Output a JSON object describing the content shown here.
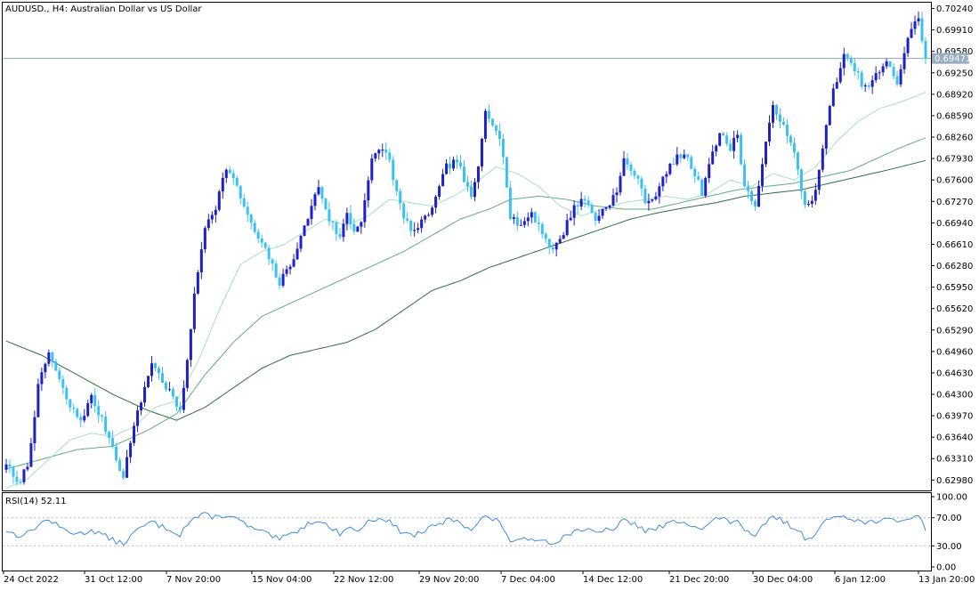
{
  "symbol_title": "AUDUSD., H4:  Australian Dollar vs US Dollar",
  "colors": {
    "bull": "#1f1fc8",
    "bear": "#3cc0f0",
    "ma_fast": "#a9dfc0",
    "ma_mid": "#5fae7c",
    "ma_slow": "#2f6e42",
    "rsi_line": "#3c8ee0",
    "price_line": "#8fa3b4",
    "axis": "#000000"
  },
  "chart_data": [
    {
      "type": "candlestick",
      "title": "AUDUSD., H4:  Australian Dollar vs US Dollar",
      "ylim": [
        0.6282,
        0.7033
      ],
      "y_ticks": [
        "0.70240",
        "0.69910",
        "0.69580",
        "0.69250",
        "0.68920",
        "0.68590",
        "0.68260",
        "0.67930",
        "0.67600",
        "0.67270",
        "0.66940",
        "0.66610",
        "0.66280",
        "0.65950",
        "0.65620",
        "0.65290",
        "0.64960",
        "0.64630",
        "0.64300",
        "0.63970",
        "0.63640",
        "0.63310",
        "0.62980"
      ],
      "current_price": "0.69471",
      "x_labels": [
        "24 Oct 2022",
        "31 Oct 12:00",
        "7 Nov 20:00",
        "15 Nov 04:00",
        "22 Nov 12:00",
        "29 Nov 20:00",
        "7 Dec 04:00",
        "14 Dec 12:00",
        "21 Dec 20:00",
        "30 Dec 04:00",
        "6 Jan 12:00",
        "13 Jan 20:00"
      ],
      "close_path": [
        [
          0,
          0.6325
        ],
        [
          3,
          0.629
        ],
        [
          6,
          0.632
        ],
        [
          9,
          0.644
        ],
        [
          12,
          0.6495
        ],
        [
          15,
          0.645
        ],
        [
          18,
          0.641
        ],
        [
          21,
          0.639
        ],
        [
          24,
          0.6425
        ],
        [
          27,
          0.639
        ],
        [
          30,
          0.635
        ],
        [
          33,
          0.63
        ],
        [
          35,
          0.636
        ],
        [
          38,
          0.642
        ],
        [
          41,
          0.648
        ],
        [
          44,
          0.645
        ],
        [
          47,
          0.6425
        ],
        [
          49,
          0.64
        ],
        [
          50,
          0.644
        ],
        [
          53,
          0.658
        ],
        [
          56,
          0.669
        ],
        [
          59,
          0.672
        ],
        [
          62,
          0.678
        ],
        [
          64,
          0.676
        ],
        [
          67,
          0.672
        ],
        [
          69,
          0.669
        ],
        [
          71,
          0.667
        ],
        [
          74,
          0.664
        ],
        [
          77,
          0.66
        ],
        [
          80,
          0.663
        ],
        [
          83,
          0.667
        ],
        [
          86,
          0.672
        ],
        [
          88,
          0.675
        ],
        [
          91,
          0.67
        ],
        [
          94,
          0.667
        ],
        [
          96,
          0.671
        ],
        [
          98,
          0.668
        ],
        [
          100,
          0.67
        ],
        [
          103,
          0.679
        ],
        [
          106,
          0.681
        ],
        [
          108,
          0.679
        ],
        [
          110,
          0.674
        ],
        [
          112,
          0.67
        ],
        [
          115,
          0.668
        ],
        [
          118,
          0.67
        ],
        [
          121,
          0.673
        ],
        [
          124,
          0.678
        ],
        [
          127,
          0.679
        ],
        [
          129,
          0.676
        ],
        [
          131,
          0.673
        ],
        [
          133,
          0.678
        ],
        [
          135,
          0.687
        ],
        [
          138,
          0.684
        ],
        [
          140,
          0.68
        ],
        [
          142,
          0.67
        ],
        [
          145,
          0.669
        ],
        [
          148,
          0.671
        ],
        [
          151,
          0.668
        ],
        [
          154,
          0.665
        ],
        [
          157,
          0.668
        ],
        [
          160,
          0.672
        ],
        [
          163,
          0.673
        ],
        [
          166,
          0.67
        ],
        [
          169,
          0.672
        ],
        [
          172,
          0.674
        ],
        [
          174,
          0.679
        ],
        [
          177,
          0.677
        ],
        [
          180,
          0.673
        ],
        [
          182,
          0.673
        ],
        [
          185,
          0.676
        ],
        [
          188,
          0.679
        ],
        [
          191,
          0.68
        ],
        [
          194,
          0.677
        ],
        [
          196,
          0.674
        ],
        [
          198,
          0.679
        ],
        [
          201,
          0.683
        ],
        [
          204,
          0.681
        ],
        [
          206,
          0.683
        ],
        [
          208,
          0.675
        ],
        [
          211,
          0.672
        ],
        [
          213,
          0.678
        ],
        [
          216,
          0.688
        ],
        [
          219,
          0.684
        ],
        [
          222,
          0.68
        ],
        [
          225,
          0.672
        ],
        [
          228,
          0.674
        ],
        [
          230,
          0.681
        ],
        [
          233,
          0.69
        ],
        [
          236,
          0.695
        ],
        [
          239,
          0.693
        ],
        [
          242,
          0.69
        ],
        [
          245,
          0.692
        ],
        [
          248,
          0.694
        ],
        [
          251,
          0.691
        ],
        [
          254,
          0.698
        ],
        [
          257,
          0.701
        ],
        [
          259,
          0.6947
        ]
      ],
      "ma_fast_path": [
        [
          0,
          0.6285
        ],
        [
          6,
          0.63
        ],
        [
          12,
          0.633
        ],
        [
          18,
          0.636
        ],
        [
          24,
          0.637
        ],
        [
          30,
          0.6365
        ],
        [
          36,
          0.638
        ],
        [
          42,
          0.641
        ],
        [
          48,
          0.642
        ],
        [
          54,
          0.648
        ],
        [
          60,
          0.656
        ],
        [
          66,
          0.663
        ],
        [
          72,
          0.665
        ],
        [
          78,
          0.666
        ],
        [
          84,
          0.668
        ],
        [
          90,
          0.67
        ],
        [
          96,
          0.669
        ],
        [
          102,
          0.6705
        ],
        [
          108,
          0.673
        ],
        [
          114,
          0.6725
        ],
        [
          120,
          0.672
        ],
        [
          126,
          0.6735
        ],
        [
          132,
          0.6755
        ],
        [
          138,
          0.678
        ],
        [
          144,
          0.677
        ],
        [
          150,
          0.675
        ],
        [
          156,
          0.672
        ],
        [
          162,
          0.6705
        ],
        [
          168,
          0.6715
        ],
        [
          174,
          0.6725
        ],
        [
          180,
          0.673
        ],
        [
          186,
          0.6735
        ],
        [
          192,
          0.673
        ],
        [
          198,
          0.674
        ],
        [
          204,
          0.676
        ],
        [
          210,
          0.675
        ],
        [
          216,
          0.677
        ],
        [
          222,
          0.676
        ],
        [
          228,
          0.678
        ],
        [
          234,
          0.682
        ],
        [
          240,
          0.685
        ],
        [
          246,
          0.687
        ],
        [
          252,
          0.688
        ],
        [
          259,
          0.6895
        ]
      ],
      "ma_mid_path": [
        [
          0,
          0.6315
        ],
        [
          10,
          0.633
        ],
        [
          20,
          0.6345
        ],
        [
          30,
          0.635
        ],
        [
          40,
          0.6375
        ],
        [
          48,
          0.64
        ],
        [
          56,
          0.646
        ],
        [
          64,
          0.651
        ],
        [
          72,
          0.655
        ],
        [
          80,
          0.657
        ],
        [
          88,
          0.659
        ],
        [
          96,
          0.661
        ],
        [
          104,
          0.663
        ],
        [
          112,
          0.665
        ],
        [
          120,
          0.6675
        ],
        [
          128,
          0.67
        ],
        [
          136,
          0.6715
        ],
        [
          142,
          0.673
        ],
        [
          150,
          0.6735
        ],
        [
          158,
          0.673
        ],
        [
          166,
          0.672
        ],
        [
          174,
          0.6715
        ],
        [
          182,
          0.6715
        ],
        [
          190,
          0.6725
        ],
        [
          198,
          0.6735
        ],
        [
          206,
          0.6745
        ],
        [
          214,
          0.675
        ],
        [
          222,
          0.6755
        ],
        [
          230,
          0.6765
        ],
        [
          238,
          0.6775
        ],
        [
          246,
          0.6795
        ],
        [
          252,
          0.681
        ],
        [
          259,
          0.6825
        ]
      ],
      "ma_slow_path": [
        [
          0,
          0.6512
        ],
        [
          10,
          0.649
        ],
        [
          20,
          0.646
        ],
        [
          30,
          0.643
        ],
        [
          40,
          0.6405
        ],
        [
          48,
          0.639
        ],
        [
          56,
          0.641
        ],
        [
          64,
          0.644
        ],
        [
          72,
          0.647
        ],
        [
          80,
          0.649
        ],
        [
          88,
          0.65
        ],
        [
          96,
          0.651
        ],
        [
          104,
          0.653
        ],
        [
          112,
          0.656
        ],
        [
          120,
          0.659
        ],
        [
          128,
          0.6605
        ],
        [
          136,
          0.6625
        ],
        [
          144,
          0.664
        ],
        [
          152,
          0.6655
        ],
        [
          160,
          0.667
        ],
        [
          168,
          0.6685
        ],
        [
          176,
          0.67
        ],
        [
          184,
          0.671
        ],
        [
          192,
          0.6718
        ],
        [
          200,
          0.6725
        ],
        [
          208,
          0.6735
        ],
        [
          216,
          0.674
        ],
        [
          224,
          0.6745
        ],
        [
          232,
          0.6755
        ],
        [
          240,
          0.6765
        ],
        [
          248,
          0.6775
        ],
        [
          259,
          0.679
        ]
      ]
    },
    {
      "type": "line",
      "title": "RSI(14) 52.11",
      "ylim": [
        0,
        100
      ],
      "y_ticks": [
        "100.00",
        "70.00",
        "30.00",
        "0.00"
      ],
      "levels": [
        30,
        70
      ],
      "rsi_path": [
        [
          0,
          52
        ],
        [
          3,
          45
        ],
        [
          6,
          48
        ],
        [
          9,
          60
        ],
        [
          12,
          68
        ],
        [
          15,
          56
        ],
        [
          18,
          50
        ],
        [
          21,
          47
        ],
        [
          24,
          53
        ],
        [
          27,
          46
        ],
        [
          30,
          38
        ],
        [
          33,
          33
        ],
        [
          35,
          44
        ],
        [
          38,
          56
        ],
        [
          41,
          64
        ],
        [
          44,
          57
        ],
        [
          47,
          52
        ],
        [
          49,
          46
        ],
        [
          50,
          55
        ],
        [
          53,
          70
        ],
        [
          56,
          74
        ],
        [
          59,
          71
        ],
        [
          62,
          74
        ],
        [
          64,
          70
        ],
        [
          67,
          62
        ],
        [
          69,
          55
        ],
        [
          71,
          52
        ],
        [
          74,
          45
        ],
        [
          77,
          39
        ],
        [
          80,
          46
        ],
        [
          83,
          55
        ],
        [
          86,
          64
        ],
        [
          88,
          68
        ],
        [
          91,
          56
        ],
        [
          94,
          48
        ],
        [
          96,
          57
        ],
        [
          98,
          52
        ],
        [
          100,
          55
        ],
        [
          103,
          68
        ],
        [
          106,
          70
        ],
        [
          108,
          64
        ],
        [
          110,
          55
        ],
        [
          112,
          48
        ],
        [
          115,
          45
        ],
        [
          118,
          52
        ],
        [
          121,
          58
        ],
        [
          124,
          66
        ],
        [
          127,
          67
        ],
        [
          129,
          60
        ],
        [
          131,
          54
        ],
        [
          133,
          64
        ],
        [
          135,
          72
        ],
        [
          138,
          66
        ],
        [
          140,
          56
        ],
        [
          142,
          38
        ],
        [
          145,
          36
        ],
        [
          148,
          42
        ],
        [
          151,
          38
        ],
        [
          154,
          35
        ],
        [
          157,
          42
        ],
        [
          160,
          52
        ],
        [
          163,
          54
        ],
        [
          166,
          47
        ],
        [
          169,
          52
        ],
        [
          172,
          57
        ],
        [
          174,
          66
        ],
        [
          177,
          61
        ],
        [
          180,
          52
        ],
        [
          182,
          52
        ],
        [
          185,
          58
        ],
        [
          188,
          64
        ],
        [
          191,
          66
        ],
        [
          194,
          58
        ],
        [
          196,
          52
        ],
        [
          198,
          62
        ],
        [
          201,
          70
        ],
        [
          204,
          64
        ],
        [
          206,
          68
        ],
        [
          208,
          50
        ],
        [
          211,
          42
        ],
        [
          213,
          56
        ],
        [
          216,
          73
        ],
        [
          219,
          64
        ],
        [
          222,
          56
        ],
        [
          225,
          42
        ],
        [
          228,
          46
        ],
        [
          230,
          60
        ],
        [
          233,
          72
        ],
        [
          236,
          74
        ],
        [
          239,
          68
        ],
        [
          242,
          62
        ],
        [
          245,
          66
        ],
        [
          248,
          68
        ],
        [
          251,
          62
        ],
        [
          254,
          70
        ],
        [
          257,
          74
        ],
        [
          259,
          52
        ]
      ]
    }
  ]
}
